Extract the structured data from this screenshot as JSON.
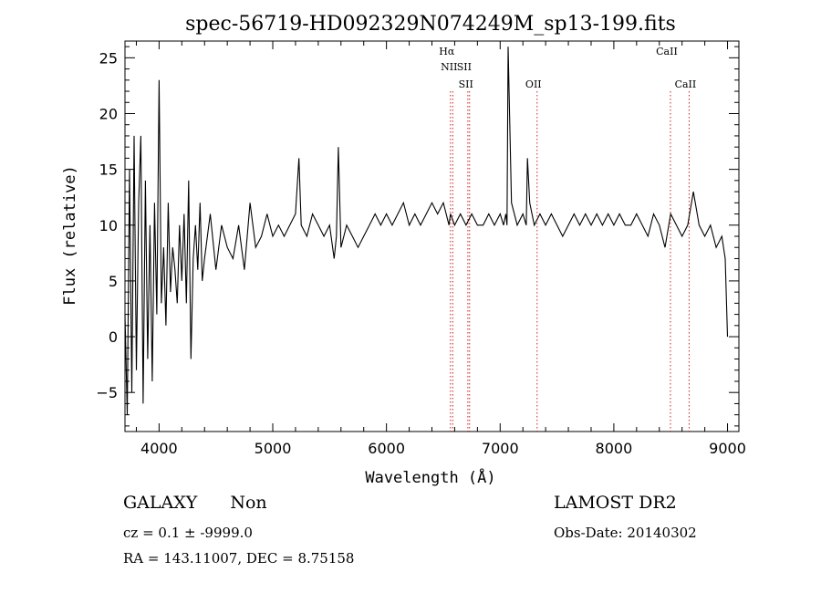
{
  "chart_data": {
    "type": "line",
    "title": "spec-56719-HD092329N074249M_sp13-199.fits",
    "xlabel": "Wavelength (Å)",
    "ylabel": "Flux (relative)",
    "xlim": [
      3700,
      9100
    ],
    "ylim": [
      -8.5,
      26.5
    ],
    "xticks": [
      4000,
      5000,
      6000,
      7000,
      8000,
      9000
    ],
    "yticks": [
      -5,
      0,
      5,
      10,
      15,
      20,
      25
    ],
    "grid": false,
    "series": [
      {
        "x": [
          3700,
          3720,
          3740,
          3760,
          3780,
          3800,
          3820,
          3840,
          3860,
          3880,
          3900,
          3920,
          3940,
          3960,
          3980,
          4000,
          4020,
          4040,
          4060,
          4080,
          4100,
          4120,
          4140,
          4160,
          4180,
          4200,
          4220,
          4240,
          4260,
          4280,
          4300,
          4320,
          4340,
          4360,
          4380,
          4400,
          4450,
          4500,
          4550,
          4600,
          4650,
          4700,
          4750,
          4800,
          4850,
          4900,
          4950,
          5000,
          5050,
          5100,
          5150,
          5200,
          5230,
          5250,
          5300,
          5350,
          5400,
          5450,
          5500,
          5540,
          5560,
          5577,
          5600,
          5650,
          5700,
          5750,
          5800,
          5850,
          5900,
          5950,
          6000,
          6050,
          6100,
          6150,
          6200,
          6250,
          6300,
          6350,
          6400,
          6450,
          6500,
          6550,
          6563,
          6600,
          6650,
          6700,
          6750,
          6800,
          6850,
          6900,
          6950,
          7000,
          7030,
          7050,
          7060,
          7070,
          7100,
          7150,
          7200,
          7230,
          7240,
          7260,
          7300,
          7350,
          7400,
          7450,
          7500,
          7550,
          7600,
          7650,
          7700,
          7750,
          7800,
          7850,
          7900,
          7950,
          8000,
          8050,
          8100,
          8150,
          8200,
          8250,
          8300,
          8350,
          8400,
          8450,
          8500,
          8550,
          8600,
          8650,
          8700,
          8750,
          8800,
          8850,
          8900,
          8950,
          8980,
          9000
        ],
        "values": [
          2,
          -7,
          15,
          -5,
          18,
          -3,
          12,
          18,
          -6,
          14,
          -2,
          10,
          -4,
          12,
          2,
          23,
          3,
          8,
          1,
          12,
          4,
          8,
          6,
          3,
          10,
          5,
          11,
          3,
          14,
          -2,
          7,
          10,
          6,
          12,
          5,
          7,
          11,
          6,
          10,
          8,
          7,
          10,
          6,
          12,
          8,
          9,
          11,
          9,
          10,
          9,
          10,
          11,
          16,
          10,
          9,
          11,
          10,
          9,
          10,
          7,
          9,
          17,
          8,
          10,
          9,
          8,
          9,
          10,
          11,
          10,
          11,
          10,
          11,
          12,
          10,
          11,
          10,
          11,
          12,
          11,
          12,
          10,
          11,
          10,
          11,
          10,
          11,
          10,
          10,
          11,
          10,
          11,
          10,
          11,
          10,
          26,
          12,
          10,
          11,
          10,
          16,
          12,
          10,
          11,
          10,
          11,
          10,
          9,
          10,
          11,
          10,
          11,
          10,
          11,
          10,
          11,
          10,
          11,
          10,
          10,
          11,
          10,
          9,
          11,
          10,
          8,
          11,
          10,
          9,
          10,
          13,
          10,
          9,
          10,
          8,
          9,
          7,
          0
        ]
      }
    ],
    "annotations": [
      {
        "label": "Hα",
        "x": 6563
      },
      {
        "label": "NII",
        "x": 6583
      },
      {
        "label": "SII",
        "x": 6716
      },
      {
        "label": "SII",
        "x": 6731
      },
      {
        "label": "OII",
        "x": 7325
      },
      {
        "label": "CaII",
        "x": 8498
      },
      {
        "label": "CaII",
        "x": 8662
      }
    ]
  },
  "info": {
    "class": "GALAXY",
    "subclass": "Non",
    "survey": "LAMOST DR2",
    "cz": "cz = 0.1 ± -9999.0",
    "obs_date": "Obs-Date: 20140302",
    "radec": "RA = 143.11007, DEC =   8.75158"
  }
}
